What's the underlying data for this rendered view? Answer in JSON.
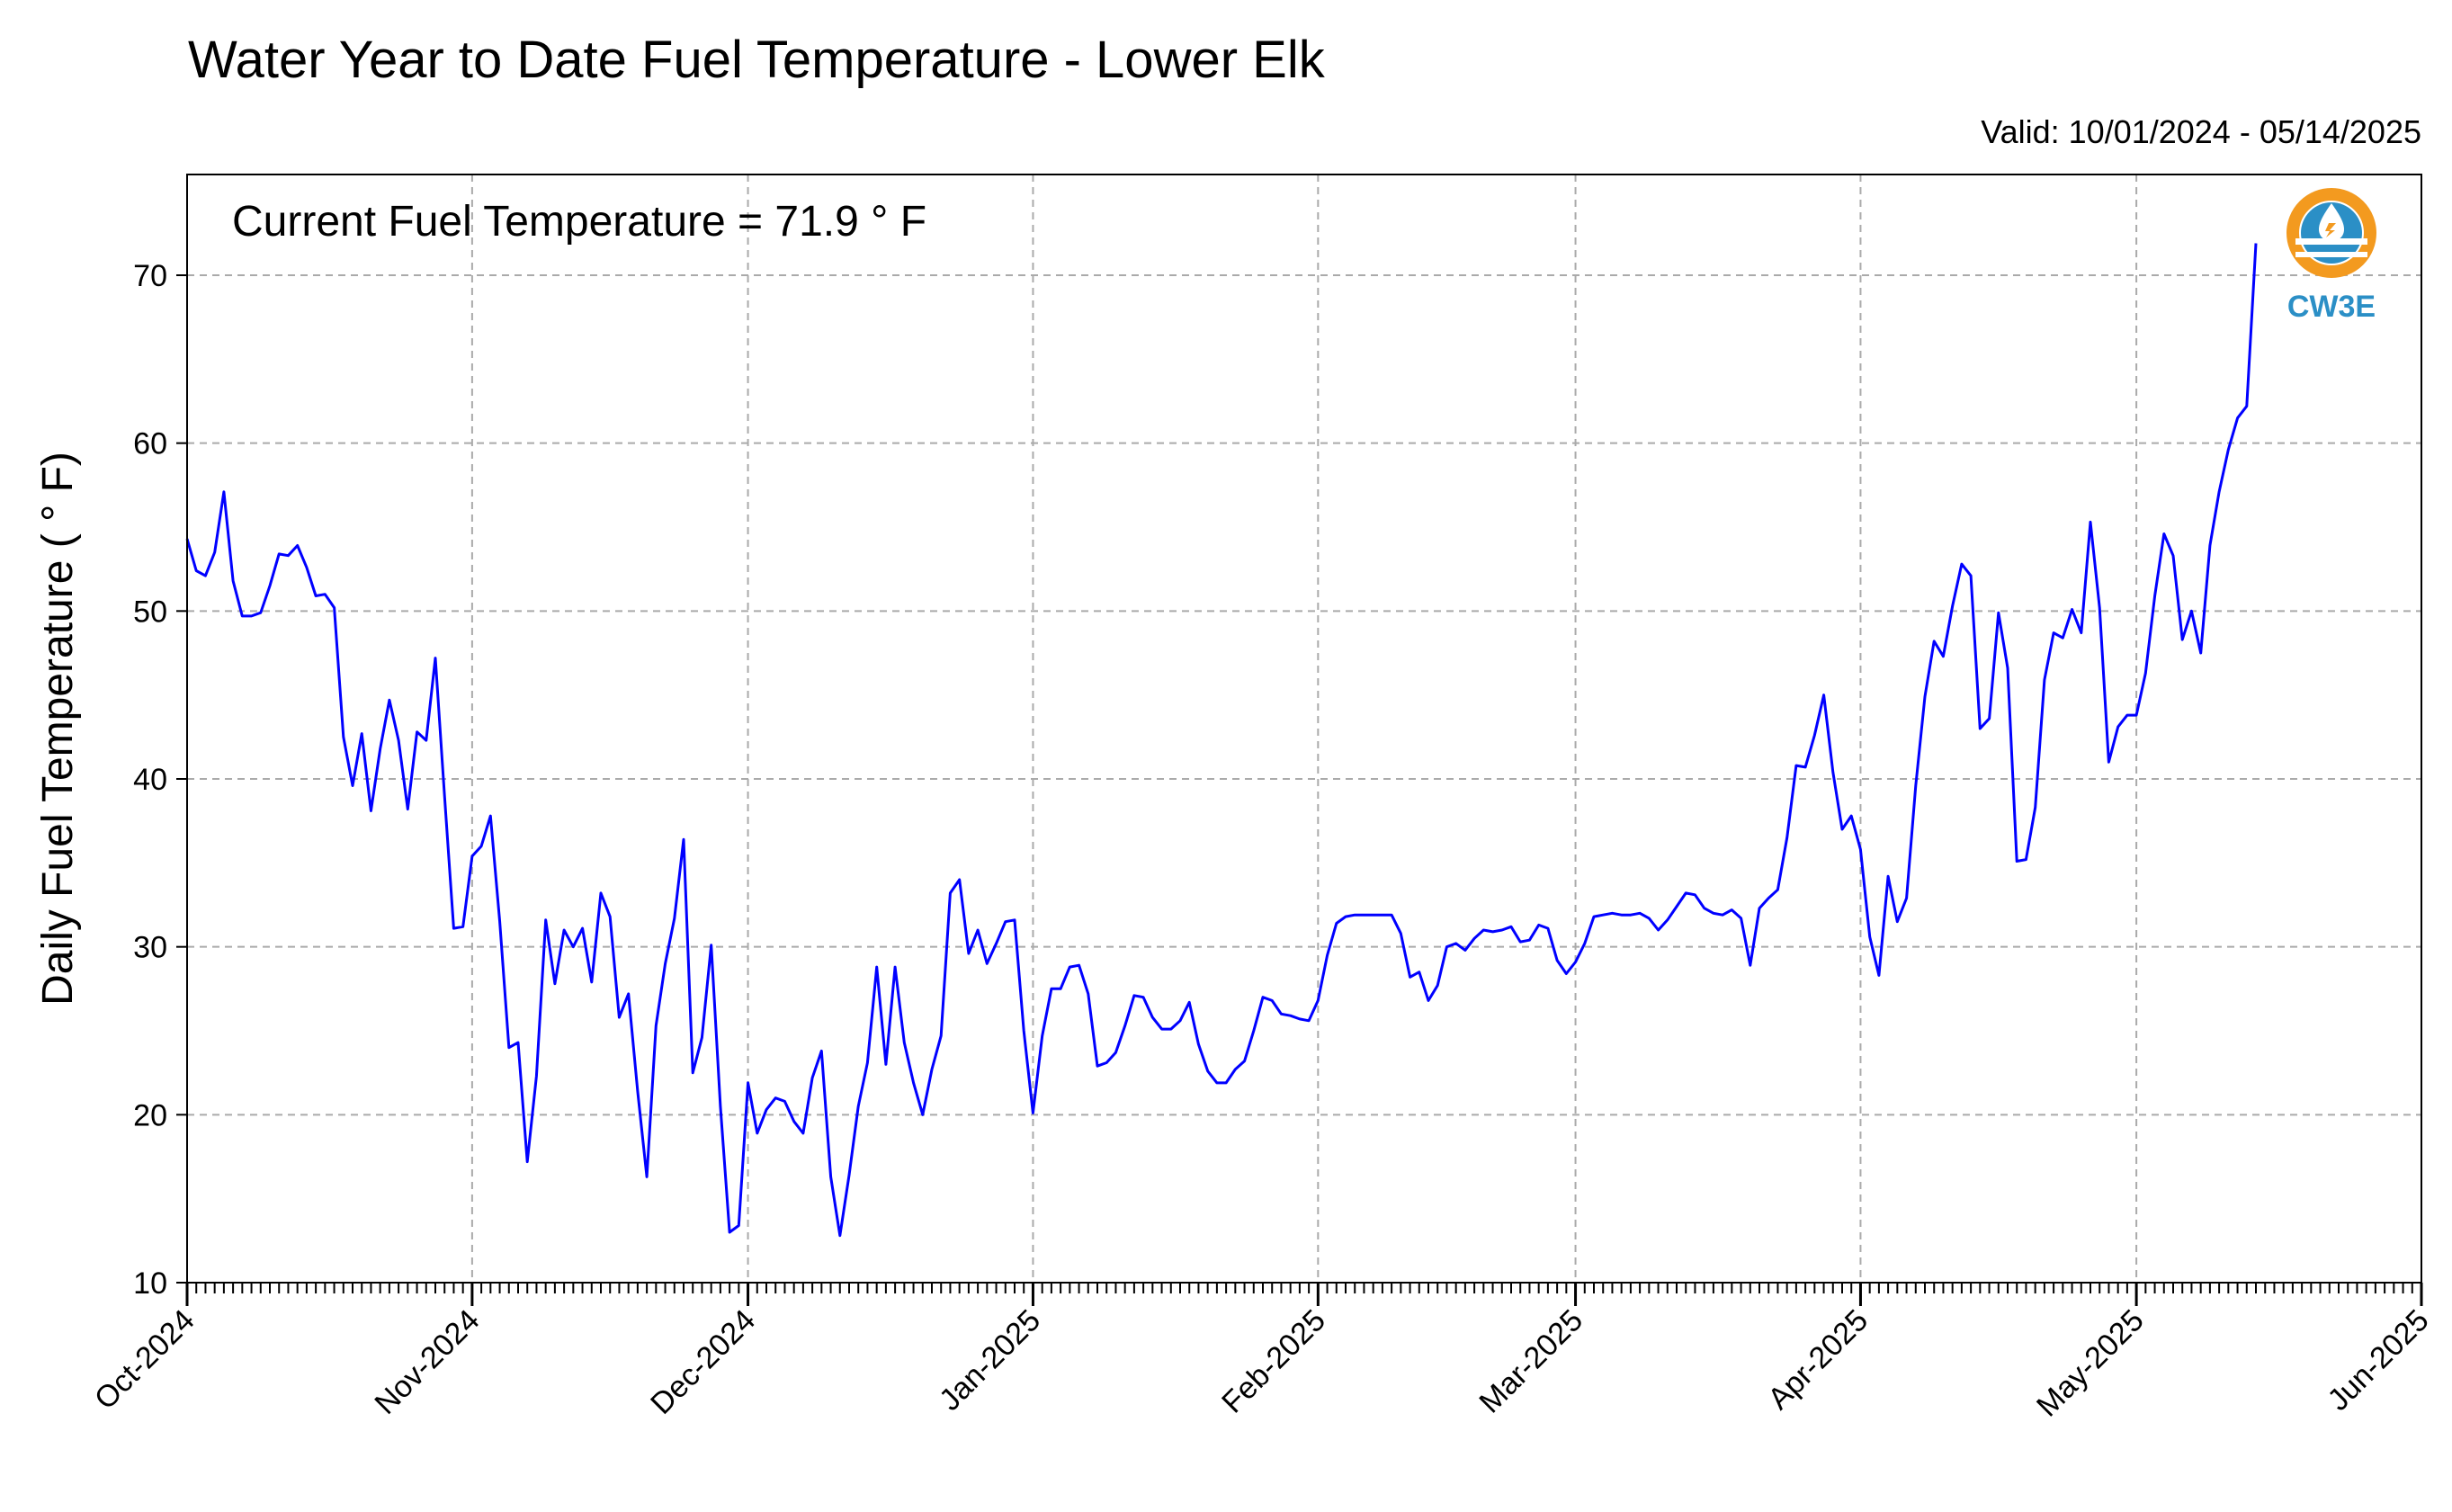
{
  "chart_data": {
    "type": "line",
    "title": "Water Year to Date Fuel Temperature - Lower Elk",
    "subtitle": "Valid: 10/01/2024 - 05/14/2025",
    "annotation": "Current Fuel Temperature = 71.9  ° F",
    "xlabel": "",
    "ylabel": "Daily Fuel Temperature ( ° F)",
    "xlim": [
      "2024-10-01",
      "2025-06-01"
    ],
    "ylim": [
      10,
      76
    ],
    "yticks": [
      10,
      20,
      30,
      40,
      50,
      60,
      70
    ],
    "xticks": [
      {
        "label": "Oct-2024",
        "date": "2024-10-01"
      },
      {
        "label": "Nov-2024",
        "date": "2024-11-01"
      },
      {
        "label": "Dec-2024",
        "date": "2024-12-01"
      },
      {
        "label": "Jan-2025",
        "date": "2025-01-01"
      },
      {
        "label": "Feb-2025",
        "date": "2025-02-01"
      },
      {
        "label": "Mar-2025",
        "date": "2025-03-01"
      },
      {
        "label": "Apr-2025",
        "date": "2025-04-01"
      },
      {
        "label": "May-2025",
        "date": "2025-05-01"
      },
      {
        "label": "Jun-2025",
        "date": "2025-06-01"
      }
    ],
    "grid": true,
    "line_color": "#0000ff",
    "series": [
      {
        "x_start": "2024-10-01",
        "x_step": "1 day",
        "values": [
          54.3,
          52.4,
          52.1,
          53.5,
          57.1,
          51.8,
          49.7,
          49.7,
          49.9,
          51.5,
          53.4,
          53.3,
          53.9,
          52.6,
          50.9,
          51.0,
          50.2,
          42.5,
          39.6,
          42.7,
          38.1,
          41.8,
          44.7,
          42.3,
          38.2,
          42.8,
          42.3,
          47.2,
          39.0,
          31.1,
          31.2,
          35.4,
          36.0,
          37.8,
          31.5,
          24.0,
          24.3,
          17.2,
          22.3,
          31.6,
          27.8,
          31.0,
          30.0,
          31.1,
          27.9,
          33.2,
          31.8,
          25.8,
          27.2,
          21.4,
          16.3,
          25.3,
          29.0,
          31.7,
          36.4,
          22.5,
          24.6,
          30.1,
          20.5,
          13.0,
          13.4,
          21.9,
          18.9,
          20.3,
          21.0,
          20.8,
          19.6,
          18.9,
          22.2,
          23.8,
          16.3,
          12.8,
          16.4,
          20.5,
          23.1,
          28.8,
          23.0,
          28.8,
          24.3,
          21.9,
          20.0,
          22.7,
          24.7,
          33.2,
          34.0,
          29.6,
          31.0,
          29.0,
          30.2,
          31.5,
          31.6,
          25.0,
          20.1,
          24.7,
          27.5,
          27.5,
          28.8,
          28.9,
          27.2,
          22.9,
          23.1,
          23.7,
          25.3,
          27.1,
          27.0,
          25.8,
          25.1,
          25.1,
          25.6,
          26.7,
          24.2,
          22.6,
          21.9,
          21.9,
          22.7,
          23.2,
          25.0,
          27.0,
          26.8,
          26.0,
          25.9,
          25.7,
          25.6,
          26.8,
          29.5,
          31.4,
          31.8,
          31.9,
          31.9,
          31.9,
          31.9,
          31.9,
          30.8,
          28.2,
          28.5,
          26.8,
          27.7,
          30.0,
          30.2,
          29.8,
          30.5,
          31.0,
          30.9,
          31.0,
          31.2,
          30.3,
          30.4,
          31.3,
          31.1,
          29.2,
          28.4,
          29.1,
          30.2,
          31.8,
          31.9,
          32.0,
          31.9,
          31.9,
          32.0,
          31.7,
          31.0,
          31.6,
          32.4,
          33.2,
          33.1,
          32.3,
          32.0,
          31.9,
          32.2,
          31.7,
          28.9,
          32.3,
          32.9,
          33.4,
          36.5,
          40.8,
          40.7,
          42.6,
          45.0,
          40.4,
          37.0,
          37.8,
          35.8,
          30.6,
          28.3,
          34.2,
          31.5,
          32.9,
          39.6,
          44.9,
          48.2,
          47.3,
          50.3,
          52.8,
          52.1,
          43.0,
          43.6,
          49.9,
          46.6,
          35.1,
          35.2,
          38.3,
          45.9,
          48.7,
          48.4,
          50.1,
          48.7,
          55.3,
          50.2,
          41.0,
          43.1,
          43.8,
          43.8,
          46.3,
          50.9,
          54.6,
          53.3,
          48.3,
          50.0,
          47.5,
          53.9,
          57.1,
          59.6,
          61.5,
          62.2,
          71.9
        ]
      }
    ]
  },
  "logo": {
    "text": "CW3E",
    "colors": {
      "ring_orange": "#f39a1f",
      "blue": "#2b8fc6",
      "text": "#2b8fc6"
    }
  }
}
